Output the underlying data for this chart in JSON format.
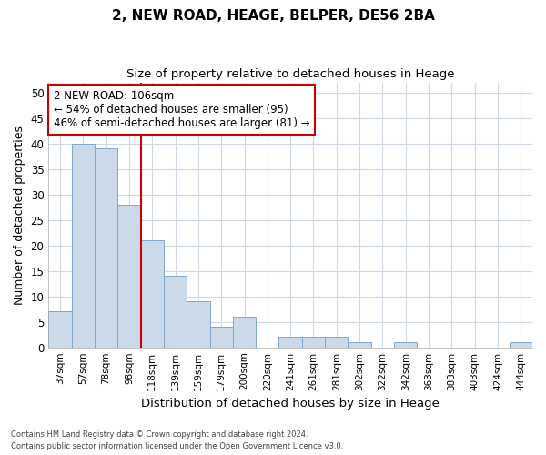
{
  "title1": "2, NEW ROAD, HEAGE, BELPER, DE56 2BA",
  "title2": "Size of property relative to detached houses in Heage",
  "xlabel": "Distribution of detached houses by size in Heage",
  "ylabel": "Number of detached properties",
  "bar_labels": [
    "37sqm",
    "57sqm",
    "78sqm",
    "98sqm",
    "118sqm",
    "139sqm",
    "159sqm",
    "179sqm",
    "200sqm",
    "220sqm",
    "241sqm",
    "261sqm",
    "281sqm",
    "302sqm",
    "322sqm",
    "342sqm",
    "363sqm",
    "383sqm",
    "403sqm",
    "424sqm",
    "444sqm"
  ],
  "bar_values": [
    7,
    40,
    39,
    28,
    21,
    14,
    9,
    4,
    6,
    0,
    2,
    2,
    2,
    1,
    0,
    1,
    0,
    0,
    0,
    0,
    1
  ],
  "bar_color": "#ccd9e8",
  "bar_edgecolor": "#7fa8cc",
  "vline_x": 3.5,
  "vline_color": "#cc0000",
  "annotation_text": "2 NEW ROAD: 106sqm\n← 54% of detached houses are smaller (95)\n46% of semi-detached houses are larger (81) →",
  "annotation_box_color": "white",
  "annotation_box_edgecolor": "#cc0000",
  "ylim": [
    0,
    52
  ],
  "yticks": [
    0,
    5,
    10,
    15,
    20,
    25,
    30,
    35,
    40,
    45,
    50
  ],
  "footer1": "Contains HM Land Registry data © Crown copyright and database right 2024.",
  "footer2": "Contains public sector information licensed under the Open Government Licence v3.0.",
  "bg_color": "#ffffff",
  "plot_bg_color": "#ffffff",
  "grid_color": "#d0d8e4"
}
